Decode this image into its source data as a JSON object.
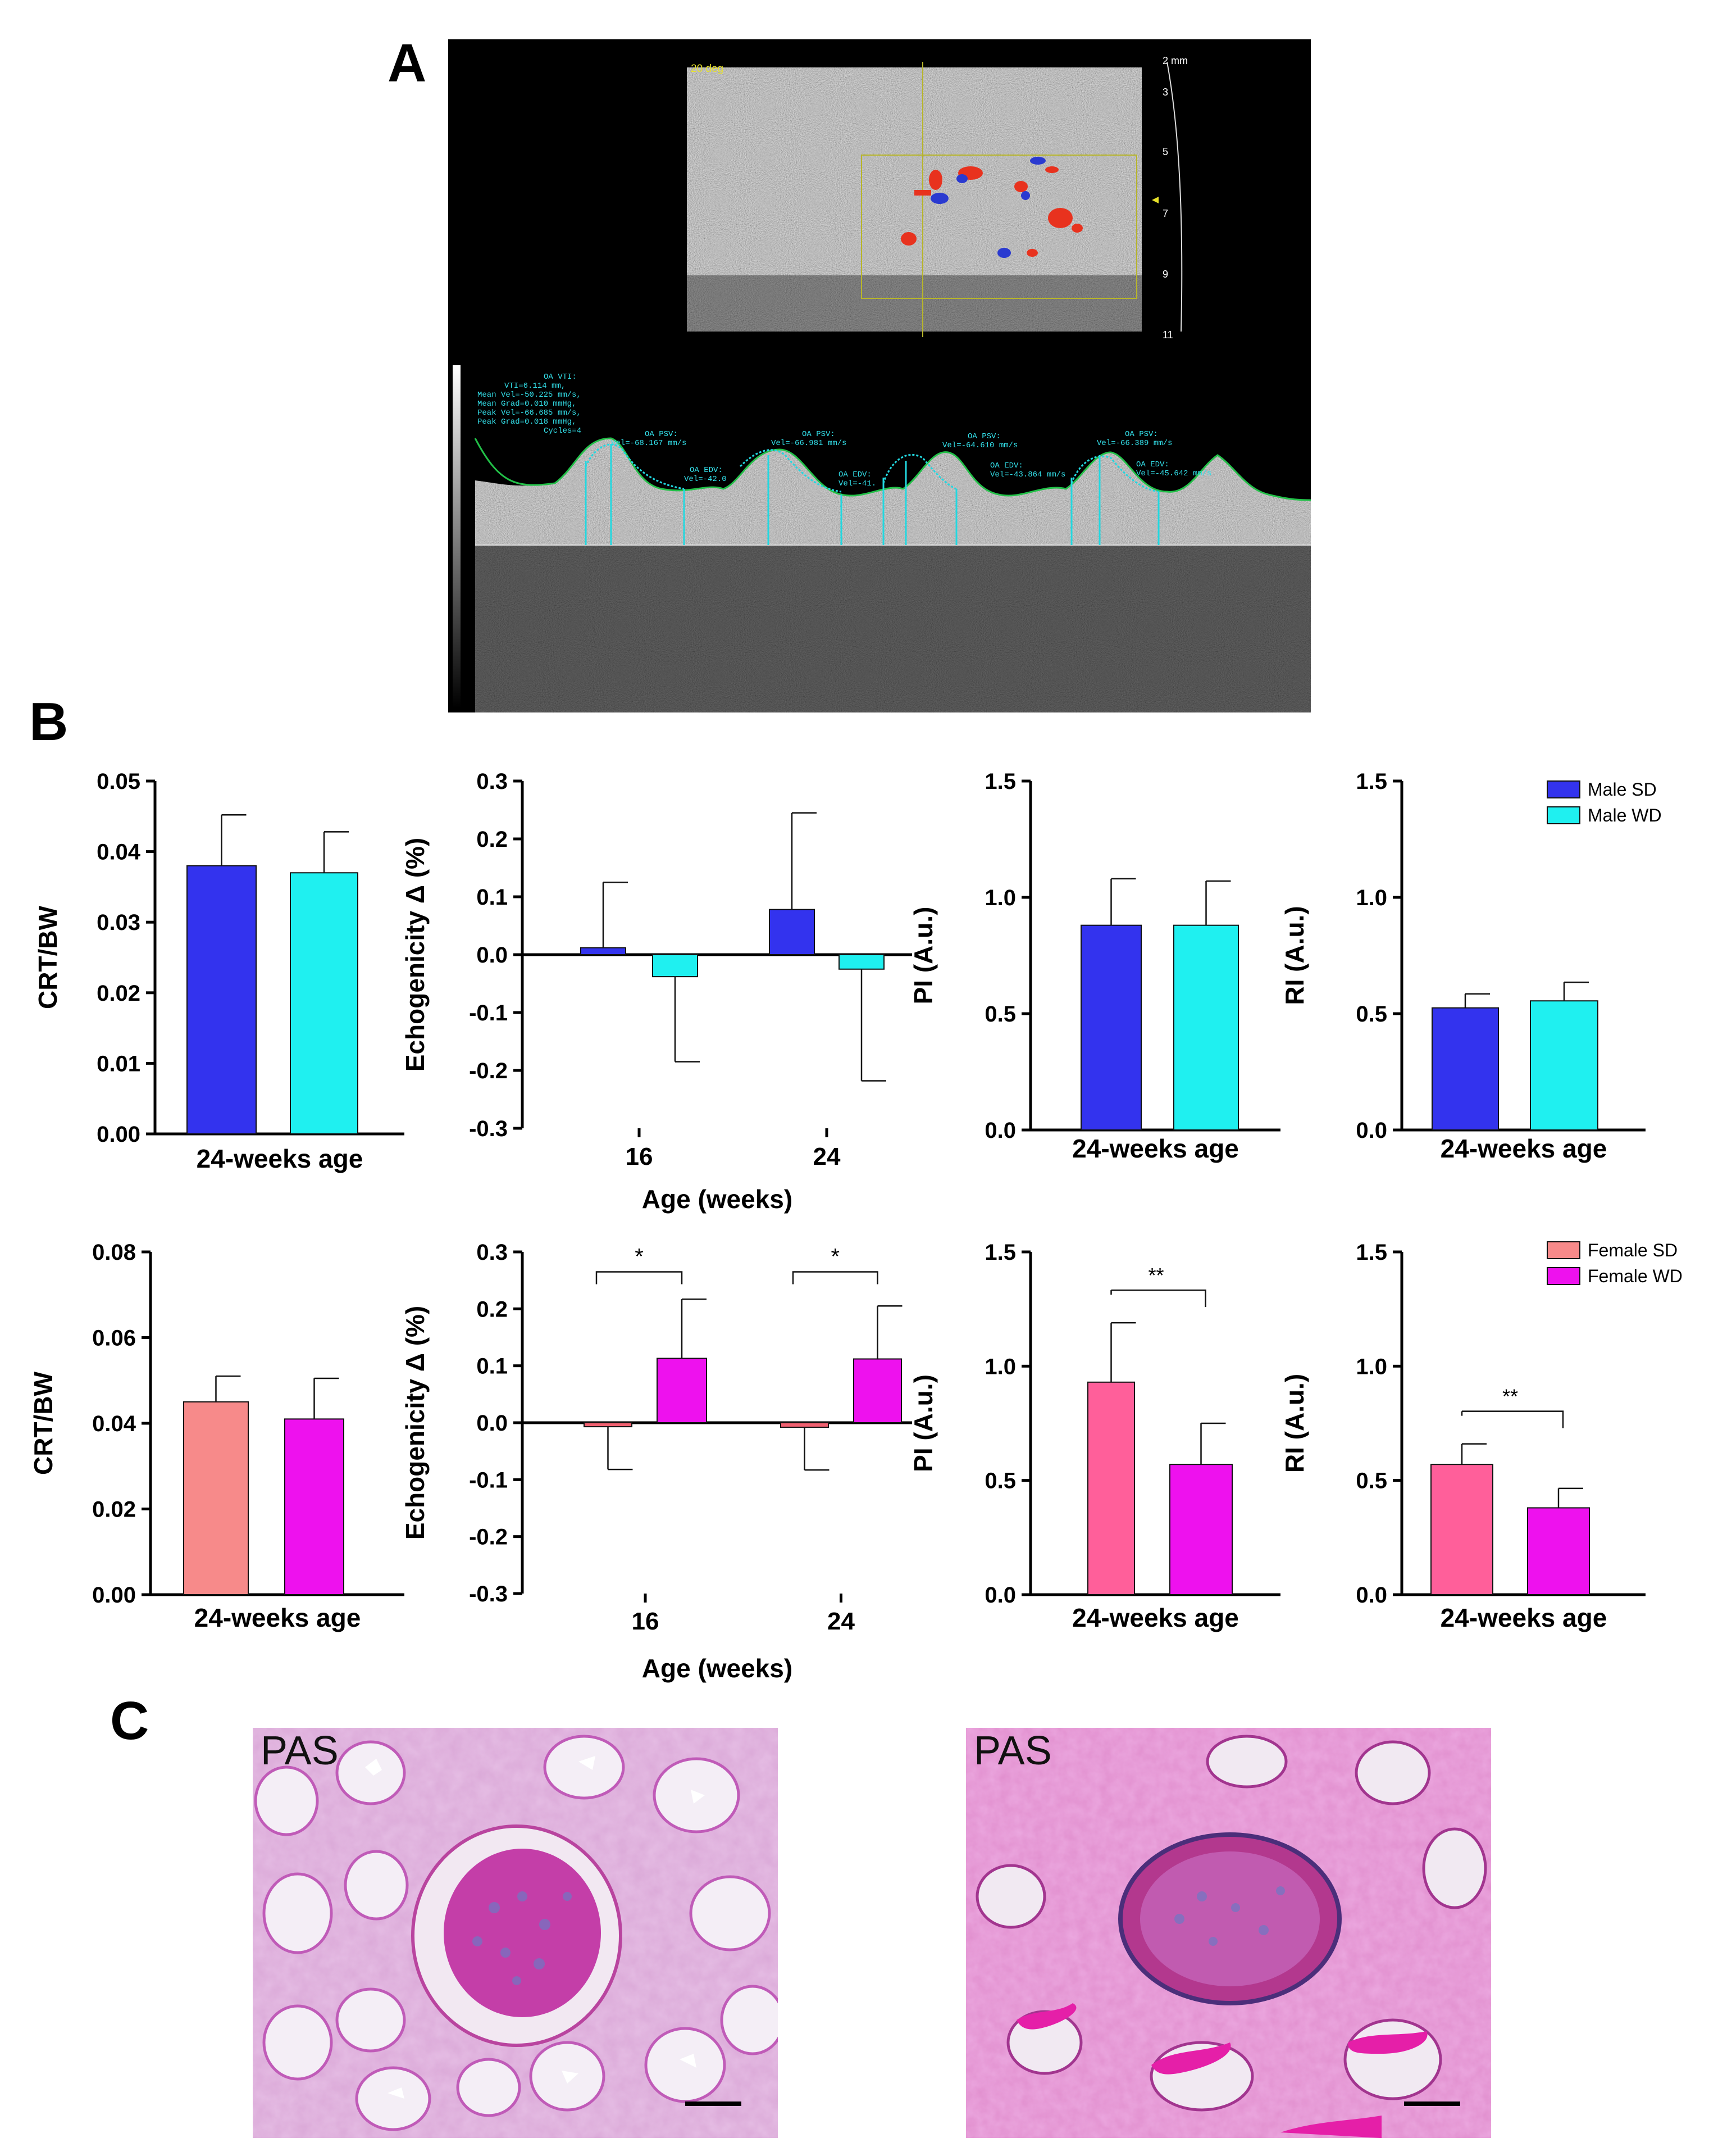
{
  "panels": {
    "a": "A",
    "b": "B",
    "c": "C"
  },
  "ultrasound": {
    "angle": "20 deg",
    "depth_ticks": [
      "2 mm",
      "3",
      "5",
      "7",
      "9",
      "11"
    ],
    "vti_text": [
      "OA VTI:",
      "VTI=6.114 mm,",
      "Mean Vel=-50.225 mm/s,",
      "Mean Grad=0.010 mmHg,",
      "Peak Vel=-66.685 mm/s,",
      "Peak Grad=0.018 mmHg,",
      "Cycles=4"
    ],
    "psv_labels": [
      "OA PSV:",
      "Vel=-68.167 mm/s",
      "OA PSV:",
      "Vel=-66.981 mm/s",
      "OA PSV:",
      "Vel=-64.610 mm/s",
      "OA PSV:",
      "Vel=-66.389 mm/s"
    ],
    "edv_labels": [
      "OA EDV:",
      "Vel=-42.0",
      "OA EDV:",
      "Vel=-41.",
      "OA EDV:",
      "Vel=-43.864 mm/s",
      "OA EDV:",
      "Vel=-45.642 mm/s"
    ]
  },
  "legends": {
    "male": [
      {
        "name": "Male SD",
        "color": "#3333ee"
      },
      {
        "name": "Male WD",
        "color": "#1ff0f0"
      }
    ],
    "female": [
      {
        "name": "Female SD",
        "color": "#f78a8a"
      },
      {
        "name": "Female WD",
        "color": "#ee11ee"
      }
    ]
  },
  "colors": {
    "male_sd": "#3333ee",
    "male_wd": "#1ff0f0",
    "female_sd_crt": "#f78a8a",
    "female_sd_echo": "#f06070",
    "female_sd_pi": "#ff5f9a",
    "female_wd": "#ee11ee"
  },
  "chart_data": [
    {
      "id": "male-crt",
      "type": "bar",
      "ylabel": "CRT/BW",
      "xlabel": "24-weeks age",
      "ylim": [
        0,
        0.05
      ],
      "yticks": [
        "0.00",
        "0.01",
        "0.02",
        "0.03",
        "0.04",
        "0.05"
      ],
      "series": [
        {
          "name": "Male SD",
          "values": [
            0.038
          ],
          "err": [
            0.0072
          ]
        },
        {
          "name": "Male WD",
          "values": [
            0.037
          ],
          "err": [
            0.0058
          ]
        }
      ]
    },
    {
      "id": "male-echo",
      "type": "bar",
      "ylabel": "Echogenicity Δ (%)",
      "xlabel": "Age (weeks)",
      "categories": [
        "16",
        "24"
      ],
      "ylim": [
        -0.3,
        0.3
      ],
      "yticks": [
        "-0.3",
        "-0.2",
        "-0.1",
        "0.0",
        "0.1",
        "0.2",
        "0.3"
      ],
      "series": [
        {
          "name": "Male SD",
          "values": [
            0.012,
            0.078
          ],
          "err": [
            0.113,
            0.167
          ]
        },
        {
          "name": "Male WD",
          "values": [
            -0.038,
            -0.025
          ],
          "err": [
            0.147,
            0.193
          ]
        }
      ]
    },
    {
      "id": "male-pi",
      "type": "bar",
      "ylabel": "PI (A.u.)",
      "xlabel": "24-weeks age",
      "ylim": [
        0,
        1.5
      ],
      "yticks": [
        "0.0",
        "0.5",
        "1.0",
        "1.5"
      ],
      "series": [
        {
          "name": "Male SD",
          "values": [
            0.88
          ],
          "err": [
            0.2
          ]
        },
        {
          "name": "Male WD",
          "values": [
            0.88
          ],
          "err": [
            0.19
          ]
        }
      ]
    },
    {
      "id": "male-ri",
      "type": "bar",
      "ylabel": "RI (A.u.)",
      "xlabel": "24-weeks age",
      "ylim": [
        0,
        1.5
      ],
      "yticks": [
        "0.0",
        "0.5",
        "1.0",
        "1.5"
      ],
      "series": [
        {
          "name": "Male SD",
          "values": [
            0.525
          ],
          "err": [
            0.06
          ]
        },
        {
          "name": "Male WD",
          "values": [
            0.555
          ],
          "err": [
            0.08
          ]
        }
      ]
    },
    {
      "id": "female-crt",
      "type": "bar",
      "ylabel": "CRT/BW",
      "xlabel": "24-weeks age",
      "ylim": [
        0,
        0.08
      ],
      "yticks": [
        "0.00",
        "0.02",
        "0.04",
        "0.06",
        "0.08"
      ],
      "series": [
        {
          "name": "Female SD",
          "values": [
            0.045
          ],
          "err": [
            0.006
          ]
        },
        {
          "name": "Female WD",
          "values": [
            0.041
          ],
          "err": [
            0.0095
          ]
        }
      ]
    },
    {
      "id": "female-echo",
      "type": "bar",
      "ylabel": "Echogenicity  Δ (%)",
      "xlabel": "Age (weeks)",
      "categories": [
        "16",
        "24"
      ],
      "ylim": [
        -0.3,
        0.3
      ],
      "yticks": [
        "-0.3",
        "-0.2",
        "-0.1",
        "0.0",
        "0.1",
        "0.2",
        "0.3"
      ],
      "series": [
        {
          "name": "Female SD",
          "values": [
            -0.007,
            -0.008
          ],
          "err": [
            0.075,
            0.075
          ]
        },
        {
          "name": "Female WD",
          "values": [
            0.113,
            0.112
          ],
          "err": [
            0.104,
            0.093
          ]
        }
      ],
      "annotations": [
        "*",
        "*"
      ]
    },
    {
      "id": "female-pi",
      "type": "bar",
      "ylabel": "PI (A.u.)",
      "xlabel": "24-weeks age",
      "ylim": [
        0,
        1.5
      ],
      "yticks": [
        "0.0",
        "0.5",
        "1.0",
        "1.5"
      ],
      "series": [
        {
          "name": "Female SD",
          "values": [
            0.93
          ],
          "err": [
            0.26
          ]
        },
        {
          "name": "Female WD",
          "values": [
            0.57
          ],
          "err": [
            0.18
          ]
        }
      ],
      "annotations": [
        "**"
      ]
    },
    {
      "id": "female-ri",
      "type": "bar",
      "ylabel": "RI (A.u.)",
      "xlabel": "24-weeks age",
      "ylim": [
        0,
        1.5
      ],
      "yticks": [
        "0.0",
        "0.5",
        "1.0",
        "1.5"
      ],
      "series": [
        {
          "name": "Female SD",
          "values": [
            0.57
          ],
          "err": [
            0.09
          ]
        },
        {
          "name": "Female WD",
          "values": [
            0.38
          ],
          "err": [
            0.085
          ]
        }
      ],
      "annotations": [
        "**"
      ]
    }
  ],
  "histology": {
    "left_label": "PAS",
    "right_label": "PAS"
  }
}
